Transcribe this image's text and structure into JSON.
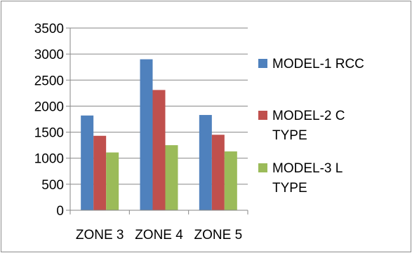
{
  "chart_data": {
    "type": "bar",
    "categories": [
      "ZONE 3",
      "ZONE 4",
      "ZONE 5"
    ],
    "series": [
      {
        "name": "MODEL-1  RCC",
        "color": "#4f81bd",
        "values": [
          1820,
          2900,
          1830
        ]
      },
      {
        "name": "MODEL-2 C TYPE",
        "color": "#c0504d",
        "values": [
          1430,
          2310,
          1450
        ]
      },
      {
        "name": "MODEL-3  L TYPE",
        "color": "#9bbb59",
        "values": [
          1110,
          1250,
          1130
        ]
      }
    ],
    "title": "",
    "xlabel": "",
    "ylabel": "",
    "ylim": [
      0,
      3500
    ],
    "yticks": [
      "0",
      "500",
      "1000",
      "1500",
      "2000",
      "2500",
      "3000",
      "3500"
    ],
    "grid": true,
    "legend_position": "right"
  },
  "legend_lines": [
    [
      "MODEL-1  RCC"
    ],
    [
      "MODEL-2 C",
      "TYPE"
    ],
    [
      "MODEL-3  L",
      "TYPE"
    ]
  ]
}
